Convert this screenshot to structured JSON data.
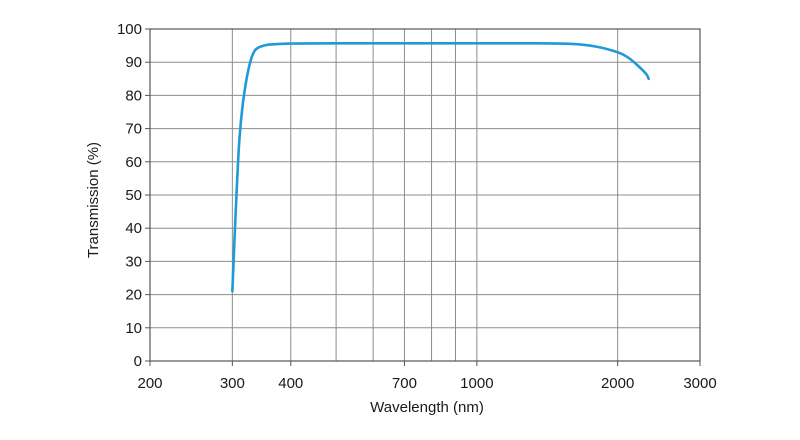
{
  "chart_data": {
    "type": "line",
    "title": "",
    "xlabel": "Wavelength (nm)",
    "ylabel": "Transmission (%)",
    "xscale": "log",
    "xlim": [
      200,
      3000
    ],
    "ylim": [
      0,
      100
    ],
    "grid": true,
    "x_tick_labels": [
      "200",
      "300",
      "400",
      "700",
      "1000",
      "2000",
      "3000"
    ],
    "x_gridlines": [
      300,
      400,
      500,
      600,
      700,
      800,
      900,
      1000,
      2000
    ],
    "y_tick_labels": [
      "0",
      "10",
      "20",
      "30",
      "40",
      "50",
      "60",
      "70",
      "80",
      "90",
      "100"
    ],
    "series": [
      {
        "name": "Transmission",
        "color": "#1f9ad6",
        "x": [
          300,
          305,
          310,
          315,
          320,
          325,
          330,
          335,
          340,
          350,
          360,
          380,
          400,
          500,
          700,
          1000,
          1300,
          1600,
          1800,
          2000,
          2100,
          2200,
          2300,
          2330
        ],
        "y": [
          21,
          45,
          65,
          76,
          83,
          88,
          91.5,
          93.5,
          94.3,
          95,
          95.3,
          95.5,
          95.6,
          95.7,
          95.7,
          95.7,
          95.7,
          95.5,
          94.7,
          93,
          91.5,
          89.2,
          86.5,
          85
        ]
      }
    ]
  }
}
